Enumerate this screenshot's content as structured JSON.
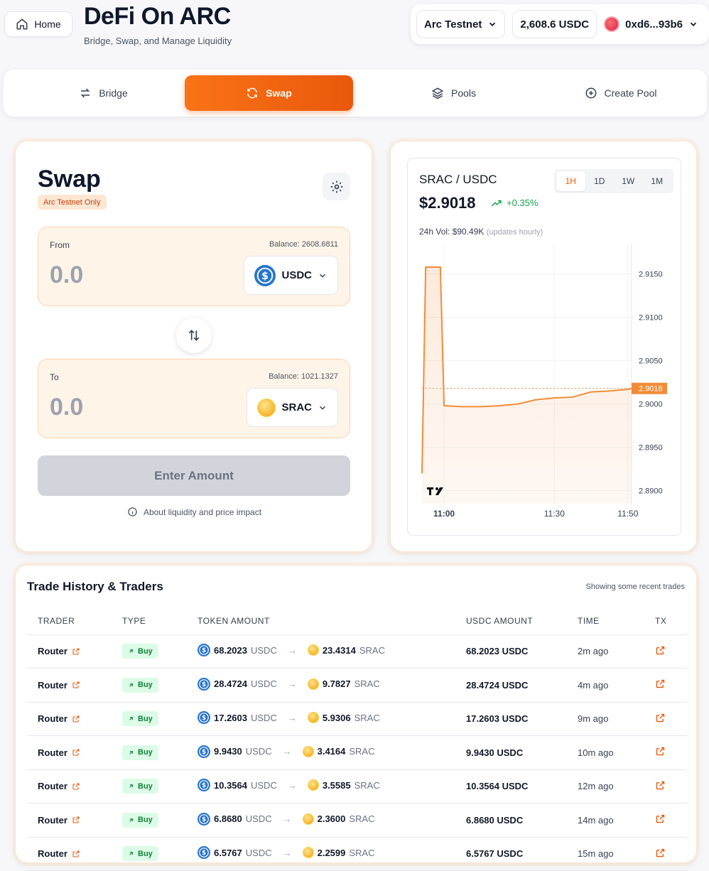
{
  "header": {
    "home_label": "Home",
    "title": "DeFi On ARC",
    "subtitle": "Bridge, Swap, and Manage Liquidity",
    "network": "Arc Testnet",
    "balance": "2,608.6 USDC",
    "wallet": "0xd6...93b6"
  },
  "tabs": [
    {
      "label": "Bridge",
      "icon": "arrows-left-right-icon",
      "active": false
    },
    {
      "label": "Swap",
      "icon": "refresh-icon",
      "active": true
    },
    {
      "label": "Pools",
      "icon": "layers-icon",
      "active": false
    },
    {
      "label": "Create Pool",
      "icon": "plus-circle-icon",
      "active": false
    }
  ],
  "swap": {
    "title": "Swap",
    "badge": "Arc Testnet Only",
    "from": {
      "label": "From",
      "balance": "Balance: 2608.6811",
      "amount": "0.0",
      "token": "USDC"
    },
    "to": {
      "label": "To",
      "balance": "Balance: 1021.1327",
      "amount": "0.0",
      "token": "SRAC"
    },
    "button": "Enter Amount",
    "about": "About liquidity and price impact"
  },
  "chart_panel": {
    "pair": "SRAC / USDC",
    "price": "$2.9018",
    "change": "+0.35%",
    "vol_label": "24h Vol: $90.49K",
    "vol_note": "(updates hourly)",
    "timeframes": [
      "1H",
      "1D",
      "1W",
      "1M"
    ],
    "active_timeframe": "1H",
    "current_label": "2.9018"
  },
  "chart_data": {
    "type": "area",
    "x": [
      "10:54",
      "10:55",
      "10:56",
      "10:57",
      "10:58",
      "10:59",
      "11:00",
      "11:05",
      "11:10",
      "11:15",
      "11:20",
      "11:25",
      "11:30",
      "11:35",
      "11:40",
      "11:45",
      "11:50",
      "11:51"
    ],
    "values": [
      2.892,
      2.9158,
      2.9158,
      2.9158,
      2.9158,
      2.9158,
      2.8998,
      2.8997,
      2.8997,
      2.8998,
      2.9,
      2.9005,
      2.9007,
      2.9008,
      2.9014,
      2.9015,
      2.9017,
      2.9018
    ],
    "y_ticks": [
      "2.9150",
      "2.9100",
      "2.9050",
      "2.9000",
      "2.8950",
      "2.8900"
    ],
    "x_ticks": [
      "11:00",
      "11:30",
      "11:50"
    ],
    "ylim": [
      2.8885,
      2.9185
    ],
    "current": 2.9018,
    "color": "#f28c38"
  },
  "trades": {
    "title": "Trade History & Traders",
    "note": "Showing some recent trades",
    "columns": [
      "TRADER",
      "TYPE",
      "TOKEN AMOUNT",
      "USDC AMOUNT",
      "TIME",
      "TX"
    ],
    "rows": [
      {
        "trader": "Router",
        "type": "Buy",
        "from_amt": "68.2023",
        "from_tok": "USDC",
        "to_amt": "23.4314",
        "to_tok": "SRAC",
        "usdc": "68.2023 USDC",
        "time": "2m ago"
      },
      {
        "trader": "Router",
        "type": "Buy",
        "from_amt": "28.4724",
        "from_tok": "USDC",
        "to_amt": "9.7827",
        "to_tok": "SRAC",
        "usdc": "28.4724 USDC",
        "time": "4m ago"
      },
      {
        "trader": "Router",
        "type": "Buy",
        "from_amt": "17.2603",
        "from_tok": "USDC",
        "to_amt": "5.9306",
        "to_tok": "SRAC",
        "usdc": "17.2603 USDC",
        "time": "9m ago"
      },
      {
        "trader": "Router",
        "type": "Buy",
        "from_amt": "9.9430",
        "from_tok": "USDC",
        "to_amt": "3.4164",
        "to_tok": "SRAC",
        "usdc": "9.9430 USDC",
        "time": "10m ago"
      },
      {
        "trader": "Router",
        "type": "Buy",
        "from_amt": "10.3564",
        "from_tok": "USDC",
        "to_amt": "3.5585",
        "to_tok": "SRAC",
        "usdc": "10.3564 USDC",
        "time": "12m ago"
      },
      {
        "trader": "Router",
        "type": "Buy",
        "from_amt": "6.8680",
        "from_tok": "USDC",
        "to_amt": "2.3600",
        "to_tok": "SRAC",
        "usdc": "6.8680 USDC",
        "time": "14m ago"
      },
      {
        "trader": "Router",
        "type": "Buy",
        "from_amt": "6.5767",
        "from_tok": "USDC",
        "to_amt": "2.2599",
        "to_tok": "SRAC",
        "usdc": "6.5767 USDC",
        "time": "15m ago"
      }
    ]
  },
  "colors": {
    "accent": "#ea580c",
    "buy": "#15803d",
    "usdc": "#2775ca"
  }
}
